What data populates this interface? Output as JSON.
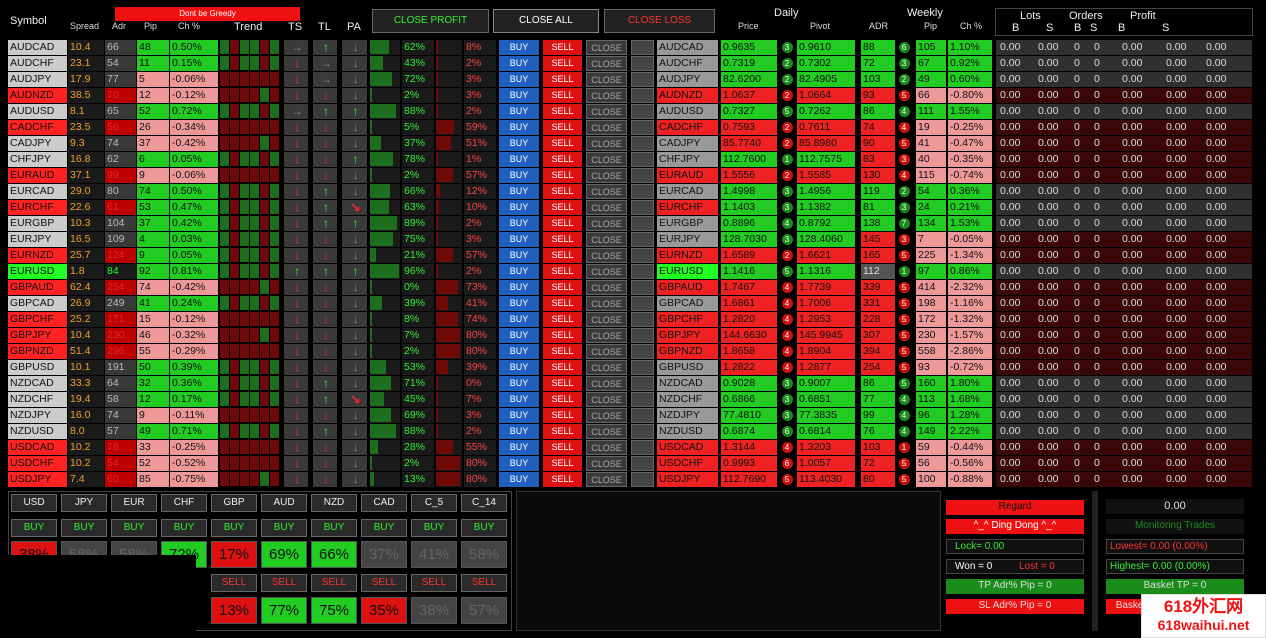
{
  "header": {
    "symbol": "Symbol",
    "spread": "Spread",
    "adr": "Adr",
    "pip": "Pip",
    "ch": "Ch %",
    "trend": "Trend",
    "ts": "TS",
    "tl": "TL",
    "pa": "PA",
    "close_profit": "CLOSE PROFIT",
    "close_all": "CLOSE ALL",
    "close_loss": "CLOSE LOSS",
    "daily": "Daily",
    "price": "Price",
    "pivot": "Pivot",
    "weekly": "Weekly",
    "adr2": "ADR",
    "wpip": "Pip",
    "wch": "Ch %",
    "lots": "Lots",
    "orders": "Orders",
    "profit": "Profit",
    "b": "B",
    "s": "S",
    "warning": "Dont be Greedy"
  },
  "labels": {
    "buy": "BUY",
    "sell": "SELL",
    "close": "CLOSE"
  },
  "rows": [
    {
      "s": "AUDCAD",
      "sp": "10.4",
      "a": "66",
      "p": "48",
      "c": "0.50%",
      "ts": "→",
      "tl": "↑",
      "pa": "↓",
      "p1": "62%",
      "p2": "8%",
      "pr": "0.9635",
      "d": "3",
      "pv": "0.9610",
      "wa": "88",
      "wd": "6",
      "wp": "105",
      "wc": "1.10%",
      "sc": "#ccc",
      "pc": "#2c2",
      "st": "g",
      "wcol": "g"
    },
    {
      "s": "AUDCHF",
      "sp": "23.1",
      "a": "54",
      "p": "11",
      "c": "0.15%",
      "ts": "↓",
      "tl": "→",
      "pa": "↓",
      "p1": "43%",
      "p2": "2%",
      "pr": "0.7319",
      "d": "2",
      "pv": "0.7302",
      "wa": "72",
      "wd": "3",
      "wp": "67",
      "wc": "0.92%",
      "sc": "#ccc",
      "pc": "#2c2",
      "st": "g",
      "wcol": "g"
    },
    {
      "s": "AUDJPY",
      "sp": "17.9",
      "a": "77",
      "p": "5",
      "c": "-0.06%",
      "ts": "↓",
      "tl": "→",
      "pa": "↓",
      "p1": "72%",
      "p2": "3%",
      "pr": "82.6200",
      "d": "2",
      "pv": "82.4905",
      "wa": "103",
      "wd": "2",
      "wp": "49",
      "wc": "0.60%",
      "sc": "#ccc",
      "pc": "#e99",
      "st": "g",
      "wcol": "g"
    },
    {
      "s": "AUDNZD",
      "sp": "38.5",
      "a": "70",
      "p": "12",
      "c": "-0.12%",
      "ts": "↓",
      "tl": "↓",
      "pa": "↓",
      "p1": "2%",
      "p2": "3%",
      "pr": "1.0637",
      "d": "2",
      "pv": "1.0664",
      "wa": "93",
      "wd": "5",
      "wp": "66",
      "wc": "-0.80%",
      "sc": "#f22",
      "pc": "#e99",
      "st": "r",
      "wcol": "r"
    },
    {
      "s": "AUDUSD",
      "sp": "8.1",
      "a": "65",
      "p": "52",
      "c": "0.72%",
      "ts": "→",
      "tl": "↑",
      "pa": "↑",
      "p1": "88%",
      "p2": "2%",
      "pr": "0.7327",
      "d": "5",
      "pv": "0.7262",
      "wa": "86",
      "wd": "4",
      "wp": "111",
      "wc": "1.55%",
      "sc": "#ccc",
      "pc": "#2c2",
      "st": "g",
      "wcol": "g"
    },
    {
      "s": "CADCHF",
      "sp": "23.5",
      "a": "56",
      "p": "26",
      "c": "-0.34%",
      "ts": "↓",
      "tl": "↓",
      "pa": "↓",
      "p1": "5%",
      "p2": "59%",
      "pr": "0.7593",
      "d": "2",
      "pv": "0.7611",
      "wa": "74",
      "wd": "4",
      "wp": "19",
      "wc": "-0.25%",
      "sc": "#f22",
      "pc": "#e99",
      "st": "r",
      "wcol": "r"
    },
    {
      "s": "CADJPY",
      "sp": "9.3",
      "a": "74",
      "p": "37",
      "c": "-0.42%",
      "ts": "↓",
      "tl": "↓",
      "pa": "↓",
      "p1": "37%",
      "p2": "51%",
      "pr": "85.7740",
      "d": "2",
      "pv": "85.8980",
      "wa": "90",
      "wd": "5",
      "wp": "41",
      "wc": "-0.47%",
      "sc": "#ccc",
      "pc": "#e99",
      "st": "g",
      "wcol": "r"
    },
    {
      "s": "CHFJPY",
      "sp": "16.8",
      "a": "62",
      "p": "6",
      "c": "0.05%",
      "ts": "↓",
      "tl": "↓",
      "pa": "↑",
      "p1": "78%",
      "p2": "1%",
      "pr": "112.7600",
      "d": "1",
      "pv": "112.7575",
      "wa": "83",
      "wd": "3",
      "wp": "40",
      "wc": "-0.35%",
      "sc": "#ccc",
      "pc": "#2c2",
      "st": "g",
      "wcol": "r"
    },
    {
      "s": "EURAUD",
      "sp": "37.1",
      "a": "99",
      "p": "9",
      "c": "-0.06%",
      "ts": "↓",
      "tl": "↓",
      "pa": "↓",
      "p1": "2%",
      "p2": "57%",
      "pr": "1.5556",
      "d": "2",
      "pv": "1.5585",
      "wa": "130",
      "wd": "4",
      "wp": "115",
      "wc": "-0.74%",
      "sc": "#f22",
      "pc": "#e99",
      "st": "r",
      "wcol": "r"
    },
    {
      "s": "EURCAD",
      "sp": "29.0",
      "a": "80",
      "p": "74",
      "c": "0.50%",
      "ts": "↓",
      "tl": "↑",
      "pa": "↓",
      "p1": "66%",
      "p2": "12%",
      "pr": "1.4998",
      "d": "3",
      "pv": "1.4956",
      "wa": "119",
      "wd": "2",
      "wp": "54",
      "wc": "0.36%",
      "sc": "#ccc",
      "pc": "#2c2",
      "st": "g",
      "wcol": "g"
    },
    {
      "s": "EURCHF",
      "sp": "22.6",
      "a": "61",
      "p": "53",
      "c": "0.47%",
      "ts": "↓",
      "tl": "↑",
      "pa": "↘",
      "p1": "63%",
      "p2": "10%",
      "pr": "1.1403",
      "d": "3",
      "pv": "1.1382",
      "wa": "81",
      "wd": "3",
      "wp": "24",
      "wc": "0.21%",
      "sc": "#f22",
      "pc": "#2c2",
      "st": "r",
      "wcol": "g"
    },
    {
      "s": "EURGBP",
      "sp": "10.3",
      "a": "104",
      "p": "37",
      "c": "0.42%",
      "ts": "↓",
      "tl": "↑",
      "pa": "↑",
      "p1": "89%",
      "p2": "2%",
      "pr": "0.8896",
      "d": "4",
      "pv": "0.8792",
      "wa": "138",
      "wd": "7",
      "wp": "134",
      "wc": "1.53%",
      "sc": "#ccc",
      "pc": "#2c2",
      "st": "g",
      "wcol": "g"
    },
    {
      "s": "EURJPY",
      "sp": "16.5",
      "a": "109",
      "p": "4",
      "c": "0.03%",
      "ts": "↓",
      "tl": "↓",
      "pa": "↓",
      "p1": "75%",
      "p2": "3%",
      "pr": "128.7030",
      "d": "3",
      "pv": "128.4060",
      "wa": "145",
      "wd": "3",
      "wp": "7",
      "wc": "-0.05%",
      "sc": "#ccc",
      "pc": "#2c2",
      "st": "g",
      "wcol": "r"
    },
    {
      "s": "EURNZD",
      "sp": "25.7",
      "a": "124",
      "p": "9",
      "c": "0.05%",
      "ts": "↓",
      "tl": "↓",
      "pa": "↓",
      "p1": "21%",
      "p2": "57%",
      "pr": "1.6589",
      "d": "2",
      "pv": "1.6621",
      "wa": "165",
      "wd": "5",
      "wp": "225",
      "wc": "-1.34%",
      "sc": "#f22",
      "pc": "#2c2",
      "st": "r",
      "wcol": "r"
    },
    {
      "s": "EURUSD",
      "sp": "1.8",
      "a": "84",
      "p": "92",
      "c": "0.81%",
      "ts": "↑",
      "tl": "↑",
      "pa": "↑",
      "p1": "96%",
      "p2": "2%",
      "pr": "1.1416",
      "d": "5",
      "pv": "1.1316",
      "wa": "112",
      "wd": "1",
      "wp": "97",
      "wc": "0.86%",
      "sc": "#2f2",
      "pc": "#2c2",
      "st": "gg",
      "wcol": "g"
    },
    {
      "s": "GBPAUD",
      "sp": "62.4",
      "a": "254",
      "p": "74",
      "c": "-0.42%",
      "ts": "↓",
      "tl": "↓",
      "pa": "↓",
      "p1": "0%",
      "p2": "73%",
      "pr": "1.7467",
      "d": "4",
      "pv": "1.7739",
      "wa": "339",
      "wd": "5",
      "wp": "414",
      "wc": "-2.32%",
      "sc": "#f22",
      "pc": "#e99",
      "st": "r",
      "wcol": "r"
    },
    {
      "s": "GBPCAD",
      "sp": "26.9",
      "a": "249",
      "p": "41",
      "c": "0.24%",
      "ts": "↓",
      "tl": "↓",
      "pa": "↓",
      "p1": "39%",
      "p2": "41%",
      "pr": "1.6861",
      "d": "4",
      "pv": "1.7006",
      "wa": "331",
      "wd": "5",
      "wp": "198",
      "wc": "-1.16%",
      "sc": "#ccc",
      "pc": "#2c2",
      "st": "g",
      "wcol": "r"
    },
    {
      "s": "GBPCHF",
      "sp": "25.2",
      "a": "171",
      "p": "15",
      "c": "-0.12%",
      "ts": "↓",
      "tl": "↓",
      "pa": "↓",
      "p1": "8%",
      "p2": "74%",
      "pr": "1.2820",
      "d": "4",
      "pv": "1.2953",
      "wa": "228",
      "wd": "5",
      "wp": "172",
      "wc": "-1.32%",
      "sc": "#f22",
      "pc": "#e99",
      "st": "r",
      "wcol": "r"
    },
    {
      "s": "GBPJPY",
      "sp": "10.4",
      "a": "230",
      "p": "46",
      "c": "-0.32%",
      "ts": "↓",
      "tl": "↓",
      "pa": "↓",
      "p1": "7%",
      "p2": "80%",
      "pr": "144.6630",
      "d": "4",
      "pv": "145.9945",
      "wa": "307",
      "wd": "5",
      "wp": "230",
      "wc": "-1.57%",
      "sc": "#f22",
      "pc": "#e99",
      "st": "r",
      "wcol": "r"
    },
    {
      "s": "GBPNZD",
      "sp": "51.4",
      "a": "296",
      "p": "55",
      "c": "-0.29%",
      "ts": "↓",
      "tl": "↓",
      "pa": "↓",
      "p1": "2%",
      "p2": "80%",
      "pr": "1.8658",
      "d": "4",
      "pv": "1.8904",
      "wa": "394",
      "wd": "5",
      "wp": "558",
      "wc": "-2.86%",
      "sc": "#f22",
      "pc": "#e99",
      "st": "r",
      "wcol": "r"
    },
    {
      "s": "GBPUSD",
      "sp": "10.1",
      "a": "191",
      "p": "50",
      "c": "0.39%",
      "ts": "↓",
      "tl": "↓",
      "pa": "↓",
      "p1": "53%",
      "p2": "39%",
      "pr": "1.2822",
      "d": "4",
      "pv": "1.2877",
      "wa": "254",
      "wd": "5",
      "wp": "93",
      "wc": "-0.72%",
      "sc": "#ccc",
      "pc": "#2c2",
      "st": "g",
      "wcol": "r"
    },
    {
      "s": "NZDCAD",
      "sp": "33.3",
      "a": "64",
      "p": "32",
      "c": "0.36%",
      "ts": "↓",
      "tl": "↑",
      "pa": "↓",
      "p1": "71%",
      "p2": "0%",
      "pr": "0.9028",
      "d": "3",
      "pv": "0.9007",
      "wa": "86",
      "wd": "5",
      "wp": "160",
      "wc": "1.80%",
      "sc": "#ccc",
      "pc": "#2c2",
      "st": "g",
      "wcol": "g"
    },
    {
      "s": "NZDCHF",
      "sp": "19.4",
      "a": "58",
      "p": "12",
      "c": "0.17%",
      "ts": "↓",
      "tl": "↑",
      "pa": "↘",
      "p1": "45%",
      "p2": "7%",
      "pr": "0.6866",
      "d": "3",
      "pv": "0.6851",
      "wa": "77",
      "wd": "4",
      "wp": "113",
      "wc": "1.68%",
      "sc": "#ccc",
      "pc": "#2c2",
      "st": "g",
      "wcol": "g"
    },
    {
      "s": "NZDJPY",
      "sp": "16.0",
      "a": "74",
      "p": "9",
      "c": "-0.11%",
      "ts": "↓",
      "tl": "↓",
      "pa": "↓",
      "p1": "69%",
      "p2": "3%",
      "pr": "77.4810",
      "d": "3",
      "pv": "77.3835",
      "wa": "99",
      "wd": "4",
      "wp": "96",
      "wc": "1.28%",
      "sc": "#ccc",
      "pc": "#e99",
      "st": "g",
      "wcol": "g"
    },
    {
      "s": "NZDUSD",
      "sp": "8.0",
      "a": "57",
      "p": "49",
      "c": "0.71%",
      "ts": "↓",
      "tl": "↑",
      "pa": "↓",
      "p1": "88%",
      "p2": "2%",
      "pr": "0.6874",
      "d": "6",
      "pv": "0.6814",
      "wa": "76",
      "wd": "4",
      "wp": "149",
      "wc": "2.22%",
      "sc": "#ccc",
      "pc": "#2c2",
      "st": "g",
      "wcol": "g"
    },
    {
      "s": "USDCAD",
      "sp": "10.2",
      "a": "78",
      "p": "33",
      "c": "-0.25%",
      "ts": "↓",
      "tl": "↓",
      "pa": "↓",
      "p1": "28%",
      "p2": "55%",
      "pr": "1.3144",
      "d": "4",
      "pv": "1.3203",
      "wa": "103",
      "wd": "1",
      "wp": "59",
      "wc": "-0.44%",
      "sc": "#f22",
      "pc": "#e99",
      "st": "r",
      "wcol": "r"
    },
    {
      "s": "USDCHF",
      "sp": "10.2",
      "a": "54",
      "p": "52",
      "c": "-0.52%",
      "ts": "↓",
      "tl": "↓",
      "pa": "↓",
      "p1": "2%",
      "p2": "80%",
      "pr": "0.9993",
      "d": "6",
      "pv": "1.0057",
      "wa": "72",
      "wd": "5",
      "wp": "56",
      "wc": "-0.56%",
      "sc": "#f22",
      "pc": "#e99",
      "st": "r",
      "wcol": "r"
    },
    {
      "s": "USDJPY",
      "sp": "7.4",
      "a": "60",
      "p": "85",
      "c": "-0.75%",
      "ts": "↓",
      "tl": "↓",
      "pa": "↓",
      "p1": "13%",
      "p2": "80%",
      "pr": "112.7690",
      "d": "5",
      "pv": "113.4030",
      "wa": "80",
      "wd": "5",
      "wp": "100",
      "wc": "-0.88%",
      "sc": "#f22",
      "pc": "#e99",
      "st": "r",
      "wcol": "r"
    }
  ],
  "zero": "0.00",
  "zeroi": "0",
  "currencies": [
    "USD",
    "JPY",
    "EUR",
    "CHF",
    "GBP",
    "AUD",
    "NZD",
    "CAD",
    "C_5",
    "C_14"
  ],
  "buy_pct": [
    "38%",
    "58%",
    "58%",
    "72%",
    "17%",
    "69%",
    "66%",
    "37%",
    "41%",
    "58%"
  ],
  "buy_col": [
    "#d11",
    "#444",
    "#444",
    "#2c2",
    "#d11",
    "#2c2",
    "#2c2",
    "#444",
    "#444",
    "#444"
  ],
  "sell_pct": [
    "",
    "",
    "",
    "",
    "13%",
    "77%",
    "75%",
    "35%",
    "38%",
    "57%"
  ],
  "sell_col": [
    "",
    "",
    "",
    "",
    "#d11",
    "#2c2",
    "#2c2",
    "#d11",
    "#444",
    "#444"
  ],
  "right": {
    "regard": "Regard",
    "ding": "^_^ Ding Dong ^_^",
    "lock": "Lock= 0.00",
    "won": "Won =  0",
    "lost": "Lost =  0",
    "tp": "TP Adr% Pip = 0",
    "sl": "SL Adr% Pip = 0",
    "total": "0.00",
    "monitoring": "Monitoring Trades",
    "lowest": "Lowest= 0.00 (0.00%)",
    "highest": "Highest= 0.00 (0.00%)",
    "basket_tp": "Basket TP = 0",
    "basket": "Basket"
  },
  "watermark": {
    "line1": "618外汇网",
    "line2": "618waihui.net"
  }
}
